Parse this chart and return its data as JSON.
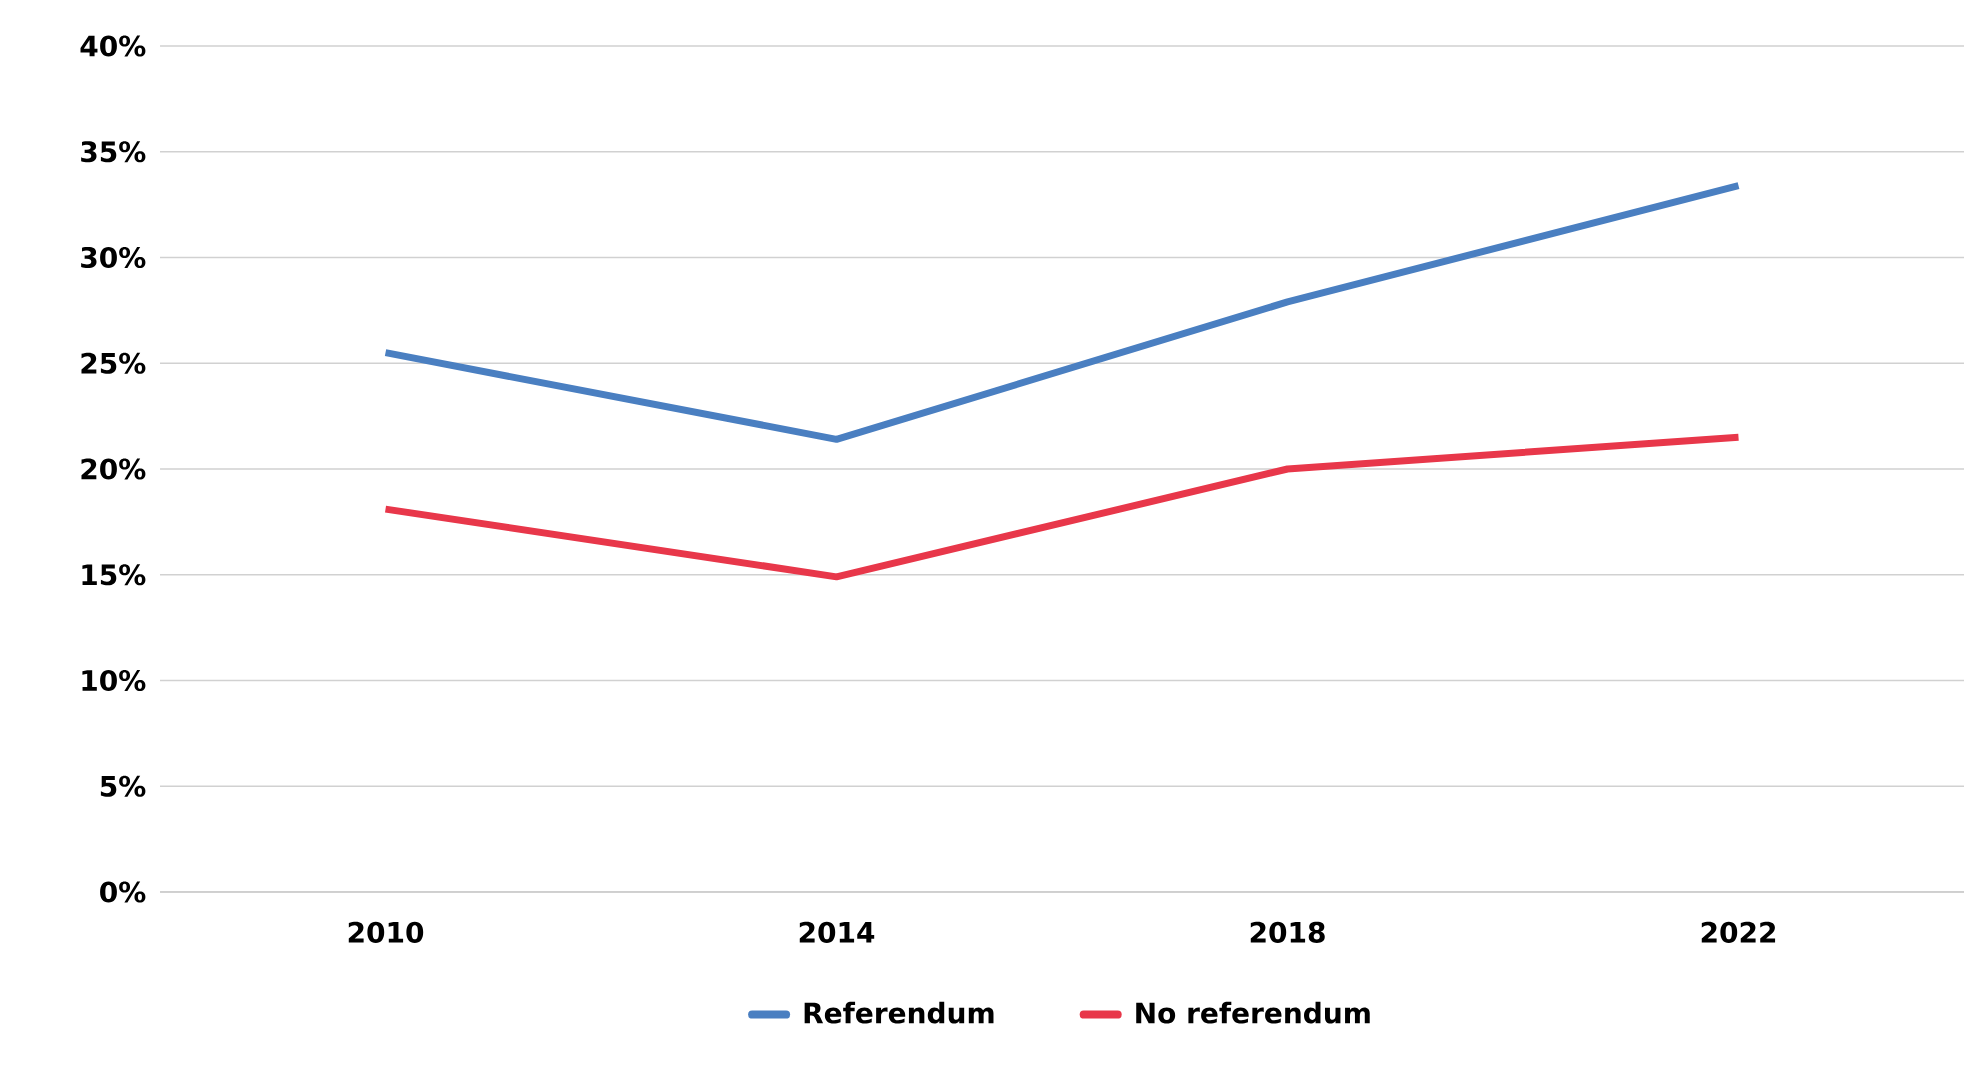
{
  "chart_data": {
    "type": "line",
    "categories": [
      "2010",
      "2014",
      "2018",
      "2022"
    ],
    "series": [
      {
        "name": "Referendum",
        "color": "#4a7fc1",
        "values": [
          25.5,
          21.4,
          27.9,
          33.4
        ]
      },
      {
        "name": "No referendum",
        "color": "#e8374a",
        "values": [
          18.1,
          14.9,
          20.0,
          21.5
        ]
      }
    ],
    "ylim": [
      0,
      40
    ],
    "yticks": [
      {
        "value": 0,
        "label": "0%"
      },
      {
        "value": 5,
        "label": "5%"
      },
      {
        "value": 10,
        "label": "10%"
      },
      {
        "value": 15,
        "label": "15%"
      },
      {
        "value": 20,
        "label": "20%"
      },
      {
        "value": 25,
        "label": "25%"
      },
      {
        "value": 30,
        "label": "30%"
      },
      {
        "value": 35,
        "label": "35%"
      },
      {
        "value": 40,
        "label": "40%"
      }
    ],
    "grid": "y",
    "legend": "bottom",
    "marker": "none",
    "line_style": "solid"
  }
}
